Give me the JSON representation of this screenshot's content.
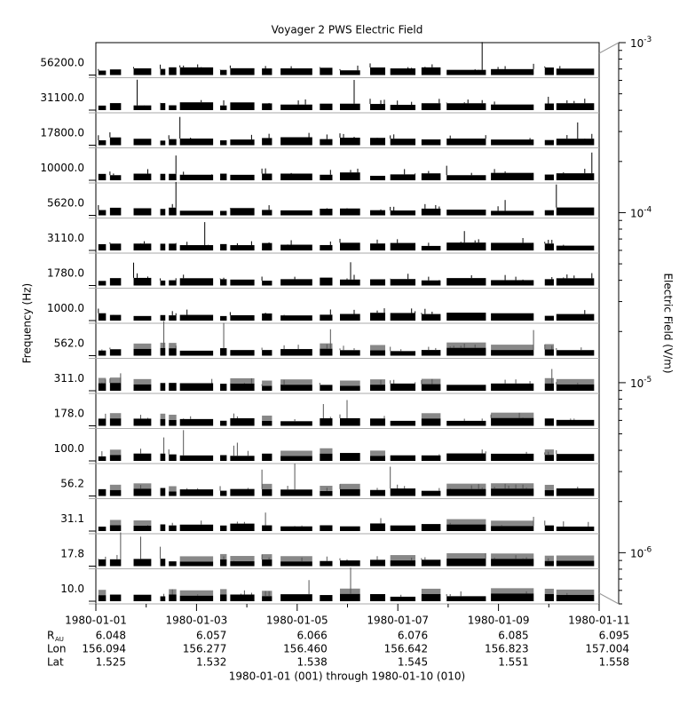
{
  "chart_data": {
    "type": "stacked-trace",
    "title": "Voyager 2 PWS Electric Field",
    "ylabel": "Frequency (Hz)",
    "categories": [
      "56200.0",
      "31100.0",
      "17800.0",
      "10000.0",
      "5620.0",
      "3110.0",
      "1780.0",
      "1000.0",
      "562.0",
      "311.0",
      "178.0",
      "100.0",
      "56.2",
      "31.1",
      "17.8",
      "10.0"
    ],
    "x_tick_labels": [
      "1980-01-01",
      "1980-01-03",
      "1980-01-05",
      "1980-01-07",
      "1980-01-09",
      "1980-01-11"
    ],
    "ephemeris": [
      {
        "label": "R",
        "sub": "AU",
        "values": [
          6.048,
          6.057,
          6.066,
          6.076,
          6.085,
          6.095
        ]
      },
      {
        "label": "Lon",
        "values": [
          156.094,
          156.277,
          {
            "value": 156.46,
            "label": "156.460"
          },
          156.642,
          156.823,
          157.004
        ]
      },
      {
        "label": "Lat",
        "values": [
          1.525,
          1.532,
          1.538,
          1.545,
          1.551,
          1.558
        ]
      }
    ],
    "xlabel": "1980-01-01 (001) through 1980-01-10 (010)",
    "colorbar": {
      "label": "Electric Field (V/m)",
      "log": true,
      "ylim": [
        5e-07,
        0.001
      ],
      "yticks": [
        {
          "value": 0.001,
          "label": "10",
          "exponent": "-3"
        },
        {
          "value": 0.0001,
          "label": "10",
          "exponent": "-4"
        },
        {
          "value": 1e-05,
          "label": "10",
          "exponent": "-5"
        },
        {
          "value": 1e-06,
          "label": "10",
          "exponent": "-6"
        }
      ]
    }
  }
}
